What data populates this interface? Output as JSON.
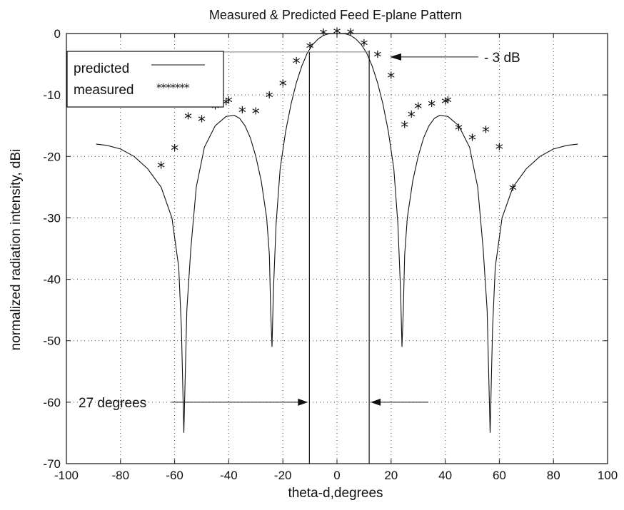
{
  "chart_data": {
    "type": "line",
    "title": "Measured & Predicted Feed E-plane Pattern",
    "xlabel": "theta-d,degrees",
    "ylabel": "normalized radiation intensity, dBi",
    "xlim": [
      -100,
      100
    ],
    "ylim": [
      -70,
      0
    ],
    "xticks": [
      -100,
      -80,
      -60,
      -40,
      -20,
      0,
      20,
      40,
      60,
      80,
      100
    ],
    "yticks": [
      0,
      -10,
      -20,
      -30,
      -40,
      -50,
      -60,
      -70
    ],
    "grid": true,
    "legend_position": "top-left",
    "series": [
      {
        "name": "predicted",
        "style": "solid",
        "x": [
          -89,
          -85,
          -80,
          -75,
          -70,
          -65,
          -61,
          -58.5,
          -57.5,
          -56.6,
          -55.5,
          -54,
          -52,
          -49,
          -45,
          -41,
          -38,
          -36,
          -34,
          -32,
          -30,
          -28,
          -26,
          -25,
          -24.5,
          -24,
          -23.5,
          -22.5,
          -21,
          -19,
          -17,
          -15,
          -13,
          -11,
          -9,
          -7,
          -5,
          -3,
          0,
          3,
          5,
          7,
          9,
          11,
          13,
          15,
          17,
          19,
          21,
          22.5,
          23.5,
          24,
          24.5,
          25,
          26,
          28,
          30,
          32,
          34,
          36,
          38,
          41,
          45,
          49,
          52,
          54,
          55.5,
          56.6,
          57.5,
          58.5,
          61,
          65,
          70,
          75,
          80,
          85,
          89
        ],
        "y": [
          -18,
          -18.2,
          -18.8,
          -20,
          -22,
          -25,
          -30,
          -38,
          -48,
          -65,
          -45,
          -35,
          -25,
          -18.5,
          -15,
          -13.5,
          -13.3,
          -13.8,
          -15,
          -17,
          -20,
          -24,
          -30,
          -36,
          -45,
          -51,
          -42,
          -31,
          -22,
          -16,
          -11.5,
          -8,
          -5.3,
          -3.2,
          -1.8,
          -0.9,
          -0.3,
          -0.05,
          0,
          -0.05,
          -0.3,
          -0.9,
          -1.8,
          -3.2,
          -5.3,
          -8,
          -11.5,
          -16,
          -22,
          -31,
          -42,
          -51,
          -45,
          -36,
          -30,
          -24,
          -20,
          -17,
          -15,
          -13.8,
          -13.3,
          -13.5,
          -15,
          -18.5,
          -25,
          -35,
          -45,
          -65,
          -48,
          -38,
          -30,
          -25,
          -22,
          -20,
          -18.8,
          -18.2,
          -18
        ]
      },
      {
        "name": "measured",
        "style": "asterisk",
        "x": [
          -65,
          -60,
          -55,
          -50,
          -45,
          -41,
          -40,
          -35,
          -30,
          -25,
          -20,
          -15,
          -10,
          -5,
          0,
          5,
          10,
          15,
          20,
          25,
          27.5,
          30,
          35,
          40,
          41,
          45,
          50,
          55,
          60,
          65
        ],
        "y": [
          -21.8,
          -19,
          -13.8,
          -14.3,
          -12.2,
          -11.5,
          -11.2,
          -12.8,
          -13,
          -10.4,
          -8.5,
          -4.8,
          -2.4,
          -0.2,
          0,
          -0.1,
          -1.9,
          -3.8,
          -7.2,
          -15.2,
          -13.5,
          -12.2,
          -11.8,
          -11.4,
          -11.2,
          -15.7,
          -17.3,
          -16,
          -18.8,
          -25.5
        ]
      }
    ],
    "legend": {
      "predicted": "predicted",
      "measured": "measured"
    },
    "annotations": [
      {
        "text": "- 3 dB",
        "y": -3,
        "x_from": -10,
        "x_to": 11.9
      },
      {
        "text": "27 degrees",
        "x_from": -10.2,
        "x_to": 11.9,
        "y": -60
      }
    ]
  }
}
